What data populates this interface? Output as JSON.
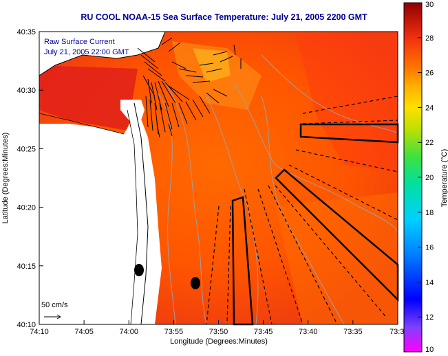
{
  "title": "RU COOL  NOAA-15  Sea Surface Temperature:  July 21, 2005 2200 GMT",
  "legend": {
    "line1": "Raw Surface Current",
    "line2": "July 21, 2005 22:00 GMT",
    "scale_label": "50 cm/s"
  },
  "map_data": {
    "type": "sst-map",
    "x_axis": {
      "label": "Longitude (Degrees:Minutes)",
      "ticks": [
        "74:10",
        "74:05",
        "74:00",
        "73:55",
        "73:50",
        "73:45",
        "73:40",
        "73:35",
        "73:3"
      ]
    },
    "y_axis": {
      "label": "Latitude (Degrees:Minutes)",
      "ticks": [
        "40:35",
        "40:30",
        "40:25",
        "40:20",
        "40:15",
        "40:10"
      ]
    },
    "colorbar": {
      "label": "Temperature (°C)",
      "range": [
        10,
        30
      ],
      "ticks": [
        "30",
        "28",
        "26",
        "24",
        "22",
        "20",
        "18",
        "16",
        "14",
        "12",
        "10"
      ]
    }
  },
  "colors": {
    "title": "#000099",
    "land": "#ffffff",
    "sea_warm": "#ff5a00",
    "sea_hot": "#e01e10",
    "sea_cool": "#ffa020",
    "vector": "#000000",
    "contour": "#a0a0a0"
  }
}
